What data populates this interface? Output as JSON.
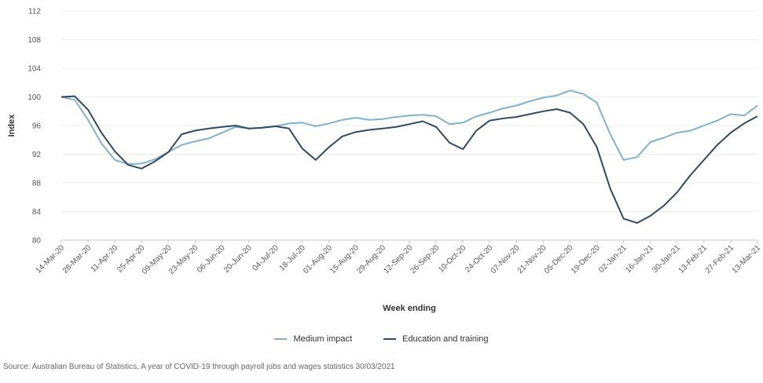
{
  "chart_data": {
    "type": "line",
    "xlabel": "Week ending",
    "ylabel": "Index",
    "ylim": [
      80,
      112
    ],
    "yticks": [
      "80",
      "84",
      "88",
      "92",
      "96",
      "100",
      "104",
      "108",
      "112"
    ],
    "grid": true,
    "legend_position": "bottom",
    "x_tick_labels": [
      "14-Mar-20",
      "28-Mar-20",
      "11-Apr-20",
      "25-Apr-20",
      "09-May-20",
      "23-May-20",
      "06-Jun-20",
      "20-Jun-20",
      "04-Jul-20",
      "18-Jul-20",
      "01-Aug-20",
      "15-Aug-20",
      "29-Aug-20",
      "12-Sep-20",
      "26-Sep-20",
      "10-Oct-20",
      "24-Oct-20",
      "07-Nov-20",
      "21-Nov-20",
      "05-Dec-20",
      "19-Dec-20",
      "02-Jan-21",
      "16-Jan-21",
      "30-Jan-21",
      "13-Feb-21",
      "27-Feb-21",
      "13-Mar-21"
    ],
    "series": [
      {
        "name": "Medium impact",
        "color": "#7fb2cf",
        "values": [
          100.0,
          99.6,
          96.8,
          93.5,
          91.2,
          90.6,
          90.7,
          91.3,
          92.3,
          93.3,
          93.8,
          94.2,
          95.0,
          95.8,
          95.6,
          95.7,
          95.9,
          96.3,
          96.4,
          95.9,
          96.3,
          96.8,
          97.1,
          96.8,
          96.9,
          97.2,
          97.4,
          97.5,
          97.3,
          96.2,
          96.4,
          97.3,
          97.8,
          98.4,
          98.8,
          99.4,
          99.9,
          100.2,
          100.9,
          100.4,
          99.2,
          94.8,
          91.2,
          91.6,
          93.7,
          94.3,
          95.0,
          95.3,
          96.0,
          96.7,
          97.6,
          97.4,
          98.8
        ]
      },
      {
        "name": "Education and training",
        "color": "#2f4b63",
        "values": [
          100.0,
          100.1,
          98.2,
          95.0,
          92.4,
          90.5,
          90.0,
          91.0,
          92.3,
          94.8,
          95.3,
          95.6,
          95.8,
          96.0,
          95.6,
          95.7,
          95.9,
          95.6,
          92.8,
          91.2,
          93.0,
          94.5,
          95.1,
          95.4,
          95.6,
          95.8,
          96.2,
          96.6,
          95.8,
          93.6,
          92.7,
          95.3,
          96.7,
          97.0,
          97.2,
          97.6,
          98.0,
          98.3,
          97.8,
          96.2,
          93.0,
          87.2,
          83.0,
          82.4,
          83.4,
          84.8,
          86.7,
          89.1,
          91.2,
          93.3,
          95.0,
          96.3,
          97.3
        ]
      }
    ]
  },
  "source_text": "Source: Australian Bureau of Statistics, A year of COVID-19 through payroll jobs and wages statistics 30/03/2021"
}
